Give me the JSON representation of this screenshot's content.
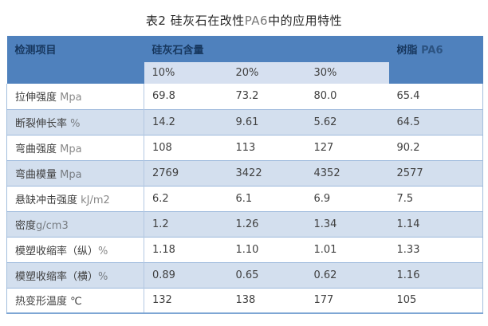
{
  "page": {
    "title_prefix": "表2 硅灰石在改性",
    "title_latin": "PA6",
    "title_suffix": "中的应用特性"
  },
  "table": {
    "header": {
      "item_col": "检测项目",
      "group_col": "硅灰石含量",
      "resin_zh": "树脂",
      "resin_latin": "PA6",
      "subheaders": [
        "10%",
        "20%",
        "30%"
      ]
    },
    "rows": [
      {
        "label": "拉伸强度 ",
        "unit": "Mpa",
        "values": [
          "69.8",
          "73.2",
          "80.0",
          "65.4"
        ]
      },
      {
        "label": "断裂伸长率 ",
        "unit": "%",
        "values": [
          "14.2",
          "9.61",
          "5.62",
          "64.5"
        ]
      },
      {
        "label": "弯曲强度 ",
        "unit": "Mpa",
        "values": [
          "108",
          "113",
          "127",
          "90.2"
        ]
      },
      {
        "label": "弯曲模量 ",
        "unit": "Mpa",
        "values": [
          "2769",
          "3422",
          "4352",
          "2577"
        ]
      },
      {
        "label": "悬缺冲击强度 ",
        "unit": "kJ/m2",
        "values": [
          "6.2",
          "6.1",
          "6.9",
          "7.5"
        ]
      },
      {
        "label": "密度",
        "unit": "g/cm3",
        "values": [
          "1.2",
          "1.26",
          "1.34",
          "1.14"
        ]
      },
      {
        "label": "模塑收缩率（纵）",
        "unit": "%",
        "values": [
          "1.18",
          "1.10",
          "1.01",
          "1.33"
        ]
      },
      {
        "label": "模塑收缩率（横）",
        "unit": "%",
        "values": [
          "0.89",
          "0.65",
          "0.62",
          "1.16"
        ]
      },
      {
        "label": "热变形温度 ℃",
        "unit": "",
        "values": [
          "132",
          "138",
          "177",
          "105"
        ]
      }
    ]
  },
  "colors": {
    "header_bg": "#4f81bd",
    "subheader_band_bg": "#d6e0f0",
    "zebra_row_bg": "#d3dfee",
    "header_text": "#17375e",
    "body_text": "#404040",
    "border": "#9db9dc"
  }
}
